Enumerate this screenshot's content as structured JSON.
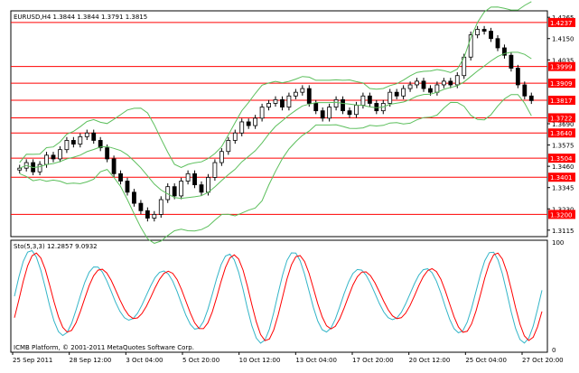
{
  "chart_data": {
    "type": "candlestick",
    "symbol_label": "EURUSD,H4",
    "ohlc_label": "1.3844 1.3844 1.3791 1.3815",
    "indicator_label": "Sto(5,3,3) 12.2857 9.0932",
    "watermark": "ICMB Platform, © 2001-2011 MetaQuotes Software Corp.",
    "price_ticks": [
      "1.4265",
      "1.4150",
      "1.4035",
      "1.3690",
      "1.3575",
      "1.3460",
      "1.3345",
      "1.3230",
      "1.3115"
    ],
    "price_tick_values": [
      1.4265,
      1.415,
      1.4035,
      1.369,
      1.3575,
      1.346,
      1.3345,
      1.323,
      1.3115
    ],
    "price_range": [
      1.308,
      1.43
    ],
    "level_lines": [
      {
        "label": "1.4237",
        "value": 1.4237
      },
      {
        "label": "1.3999",
        "value": 1.3999
      },
      {
        "label": "1.3909",
        "value": 1.3909
      },
      {
        "label": "1.3817",
        "value": 1.3817
      },
      {
        "label": "1.3722",
        "value": 1.3722
      },
      {
        "label": "1.3640",
        "value": 1.364
      },
      {
        "label": "1.3504",
        "value": 1.3504
      },
      {
        "label": "1.3401",
        "value": 1.3401
      },
      {
        "label": "1.3200",
        "value": 1.32
      }
    ],
    "x_labels": [
      "25 Sep 2011",
      "28 Sep 12:00",
      "3 Oct 04:00",
      "5 Oct 20:00",
      "10 Oct 12:00",
      "13 Oct 04:00",
      "17 Oct 20:00",
      "20 Oct 12:00",
      "25 Oct 04:00",
      "27 Oct 20:00"
    ],
    "stoch_ticks": [
      "100",
      "0"
    ],
    "stoch_range": [
      0,
      100
    ],
    "bands_color": "#5cbf5c",
    "level_color": "#ff0000",
    "stoch_main_color": "#33b5c8",
    "stoch_signal_color": "#ff0000",
    "candle_up_color": "#ffffff",
    "candle_down_color": "#000000",
    "close_path": [
      1.345,
      1.348,
      1.343,
      1.347,
      1.352,
      1.35,
      1.355,
      1.36,
      1.358,
      1.362,
      1.364,
      1.36,
      1.356,
      1.35,
      1.342,
      1.338,
      1.332,
      1.326,
      1.322,
      1.318,
      1.32,
      1.328,
      1.335,
      1.33,
      1.338,
      1.342,
      1.336,
      1.332,
      1.34,
      1.348,
      1.354,
      1.36,
      1.364,
      1.37,
      1.368,
      1.372,
      1.378,
      1.38,
      1.382,
      1.378,
      1.384,
      1.386,
      1.388,
      1.38,
      1.376,
      1.372,
      1.378,
      1.382,
      1.376,
      1.374,
      1.379,
      1.384,
      1.38,
      1.376,
      1.38,
      1.386,
      1.384,
      1.388,
      1.39,
      1.392,
      1.388,
      1.386,
      1.39,
      1.392,
      1.39,
      1.395,
      1.405,
      1.417,
      1.42,
      1.419,
      1.415,
      1.41,
      1.406,
      1.399,
      1.39,
      1.384,
      1.3815
    ]
  }
}
